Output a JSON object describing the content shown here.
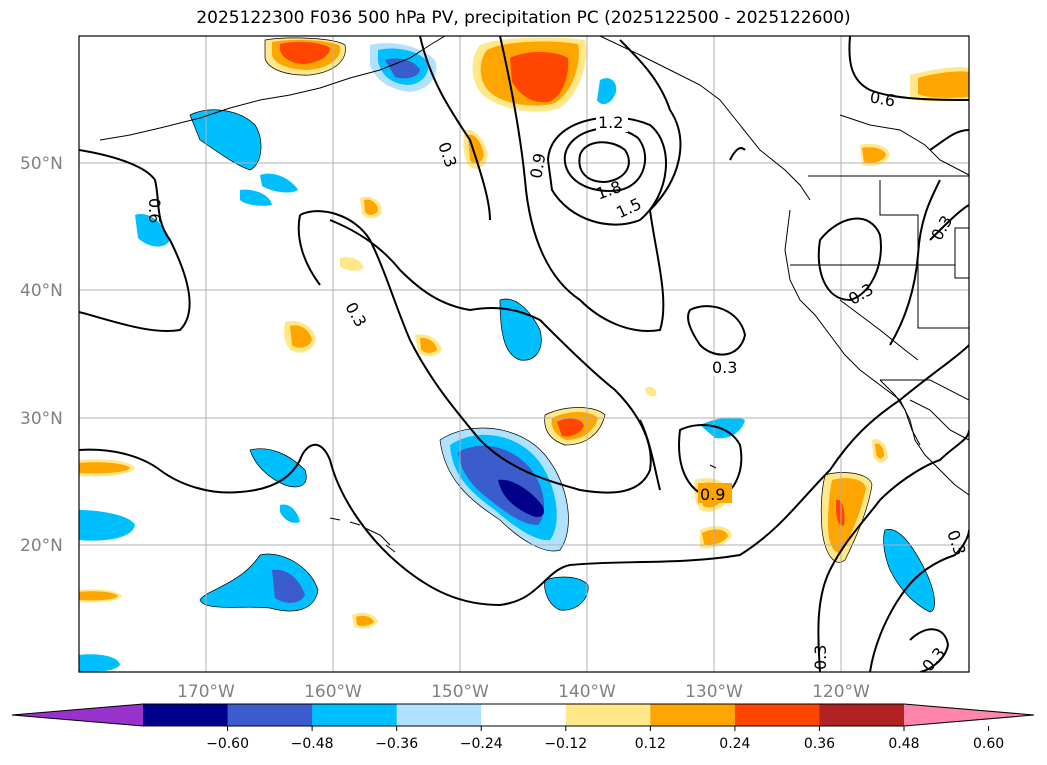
{
  "title": "2025122300 F036 500 hPa PV, precipitation PC (2025122500 - 2025122600)",
  "map": {
    "lon_range": [
      -180,
      -110
    ],
    "lat_range": [
      10,
      60
    ],
    "lat_labels": [
      "50°N",
      "40°N",
      "30°N",
      "20°N"
    ],
    "lat_values": [
      50,
      40,
      30,
      20
    ],
    "lon_labels": [
      "170°W",
      "160°W",
      "150°W",
      "140°W",
      "130°W",
      "120°W"
    ],
    "lon_values": [
      -170,
      -160,
      -150,
      -140,
      -130,
      -120
    ],
    "grid": true
  },
  "contour_labels": [
    "1.2",
    "1.8",
    "1.5",
    "0.9",
    "0.3",
    "0.3",
    "0.6",
    "0.3",
    "0.3",
    "0.9",
    "0.3",
    "0.3",
    "0.6",
    "0.3",
    "0.3"
  ],
  "colorbar": {
    "colors": [
      "#9932cc",
      "#00008b",
      "#3a5ccc",
      "#00bfff",
      "#b0e2ff",
      "#ffffff",
      "#ffe88a",
      "#ffa500",
      "#ff4500",
      "#b22222",
      "#ff85aa",
      "#ff85aa"
    ],
    "tick_labels": [
      "−0.60",
      "−0.48",
      "−0.36",
      "−0.24",
      "−0.12",
      "0.12",
      "0.24",
      "0.36",
      "0.48",
      "0.60"
    ]
  }
}
